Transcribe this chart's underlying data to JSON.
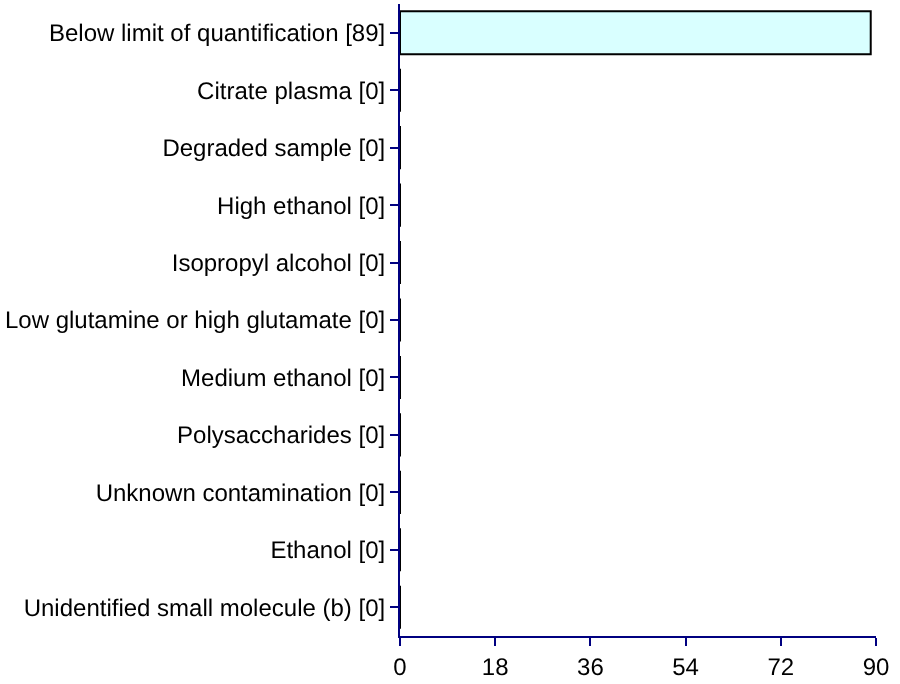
{
  "chart_data": {
    "type": "bar",
    "orientation": "horizontal",
    "categories": [
      "Below limit of quantification [89]",
      "Citrate plasma [0]",
      "Degraded sample [0]",
      "High ethanol [0]",
      "Isopropyl alcohol [0]",
      "Low glutamine or high glutamate [0]",
      "Medium ethanol [0]",
      "Polysaccharides [0]",
      "Unknown contamination [0]",
      "Ethanol [0]",
      "Unidentified small molecule (b) [0]"
    ],
    "values": [
      89,
      0,
      0,
      0,
      0,
      0,
      0,
      0,
      0,
      0,
      0
    ],
    "color": "#d9ffff",
    "xlim": [
      0,
      90
    ],
    "xticks": [
      0,
      18,
      36,
      54,
      72,
      90
    ],
    "legend": false
  }
}
